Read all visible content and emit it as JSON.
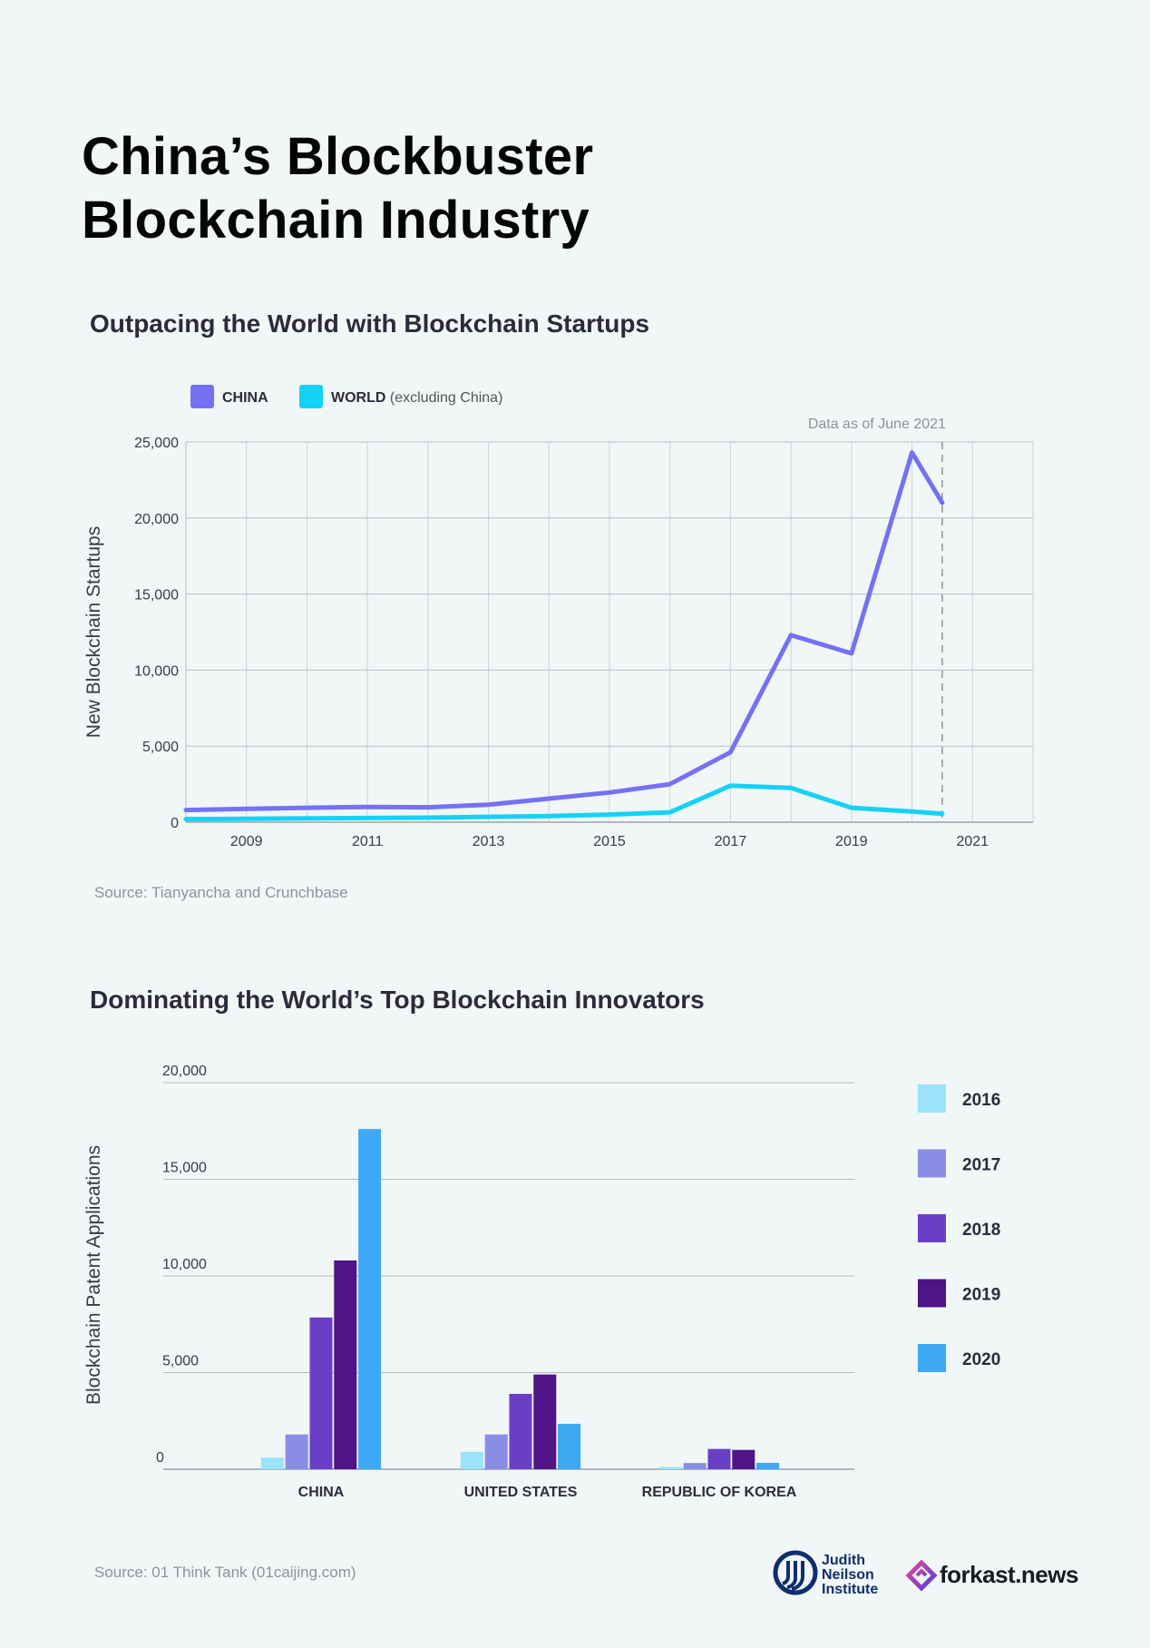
{
  "title_line1": "China’s Blockbuster",
  "title_line2": "Blockchain Industry",
  "section1": {
    "title": "Outpacing the World with Blockchain Startups",
    "source": "Source: Tianyancha and Crunchbase"
  },
  "section2": {
    "title": "Dominating the World’s Top Blockchain Innovators",
    "source": "Source: 01 Think Tank (01caijing.com)"
  },
  "logos": {
    "jni_line1": "Judith",
    "jni_line2": "Neilson",
    "jni_line3": "Institute",
    "forkast": "forkast.news"
  },
  "chart_data": [
    {
      "type": "line",
      "ylabel": "New Blockchain Startups",
      "annotation": "Data as of June 2021",
      "annotation_x": 2020.5,
      "xlim": [
        2008,
        2022
      ],
      "ylim": [
        0,
        25000
      ],
      "xticks": [
        "2009",
        "2011",
        "2013",
        "2015",
        "2017",
        "2019",
        "2021"
      ],
      "yticks": [
        "0",
        "5,000",
        "10,000",
        "15,000",
        "20,000",
        "25,000"
      ],
      "legend_position": "top-left",
      "grid": true,
      "series": [
        {
          "name": "CHINA",
          "color": "#7472f2",
          "x": [
            2008,
            2010,
            2011,
            2012,
            2013,
            2014,
            2015,
            2016,
            2017,
            2018,
            2019,
            2020,
            2020.5
          ],
          "y": [
            800,
            950,
            1000,
            980,
            1150,
            1550,
            1950,
            2500,
            4600,
            12300,
            11100,
            24300,
            21000
          ]
        },
        {
          "name": "WORLD",
          "name_suffix": "(excluding China)",
          "color": "#14d2f4",
          "x": [
            2008,
            2012,
            2014,
            2015,
            2016,
            2017,
            2018,
            2019,
            2020,
            2020.5
          ],
          "y": [
            200,
            300,
            400,
            500,
            650,
            2400,
            2250,
            950,
            700,
            550
          ]
        }
      ]
    },
    {
      "type": "bar",
      "ylabel": "Blockchain Patent Applications",
      "ylim": [
        0,
        20000
      ],
      "yticks": [
        "0",
        "5,000",
        "10,000",
        "15,000",
        "20,000"
      ],
      "categories": [
        "CHINA",
        "UNITED STATES",
        "REPUBLIC OF KOREA"
      ],
      "legend_position": "right",
      "series": [
        {
          "name": "2016",
          "color": "#9be3f8",
          "values": [
            600,
            900,
            120
          ]
        },
        {
          "name": "2017",
          "color": "#8a8de6",
          "values": [
            1800,
            1800,
            320
          ]
        },
        {
          "name": "2018",
          "color": "#6a3fc8",
          "values": [
            7850,
            3900,
            1050
          ]
        },
        {
          "name": "2019",
          "color": "#4e1488",
          "values": [
            10800,
            4900,
            1000
          ]
        },
        {
          "name": "2020",
          "color": "#3ea8f4",
          "values": [
            17600,
            2350,
            330
          ]
        }
      ]
    }
  ]
}
